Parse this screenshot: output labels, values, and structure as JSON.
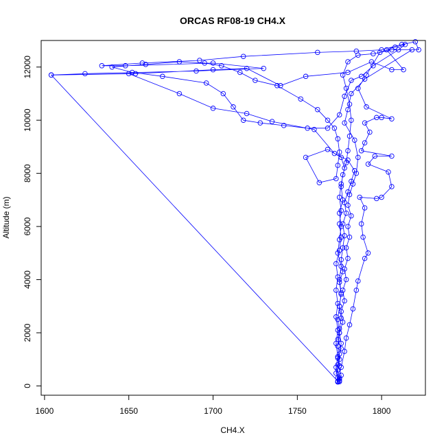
{
  "chart_data": {
    "type": "line",
    "title": "ORCAS RF08-19 CH4.X",
    "xlabel": "CH4.X",
    "ylabel": "Altitude (m)",
    "xlim": [
      1598,
      1826
    ],
    "ylim": [
      -350,
      13000
    ],
    "xticks": [
      1600,
      1650,
      1700,
      1750,
      1800
    ],
    "yticks": [
      0,
      2000,
      4000,
      6000,
      8000,
      10000,
      12000
    ],
    "grid": false,
    "legend": "none",
    "line_color": "#0000ff",
    "marker": "open-circle",
    "series": [
      {
        "values": [
          [
            1774,
            150
          ],
          [
            1775,
            260
          ],
          [
            1773,
            480
          ],
          [
            1775,
            760
          ],
          [
            1774,
            1050
          ],
          [
            1776,
            1400
          ],
          [
            1774,
            1750
          ],
          [
            1775,
            2150
          ],
          [
            1776,
            2550
          ],
          [
            1775,
            3000
          ],
          [
            1776,
            3450
          ],
          [
            1775,
            3900
          ],
          [
            1777,
            4300
          ],
          [
            1776,
            4750
          ],
          [
            1777,
            5200
          ],
          [
            1778,
            5650
          ],
          [
            1777,
            6100
          ],
          [
            1779,
            6500
          ],
          [
            1778,
            6900
          ],
          [
            1780,
            7300
          ],
          [
            1782,
            7700
          ],
          [
            1784,
            8100
          ],
          [
            1780,
            8500
          ],
          [
            1772,
            8750
          ],
          [
            1760,
            9650
          ],
          [
            1735,
            9950
          ],
          [
            1720,
            10250
          ],
          [
            1700,
            10450
          ],
          [
            1680,
            11000
          ],
          [
            1650,
            11750
          ],
          [
            1604,
            11700
          ],
          [
            1624,
            11750
          ],
          [
            1690,
            11850
          ],
          [
            1730,
            11950
          ],
          [
            1700,
            12150
          ],
          [
            1648,
            12050
          ],
          [
            1634,
            12050
          ],
          [
            1658,
            12150
          ],
          [
            1692,
            12250
          ],
          [
            1718,
            12400
          ],
          [
            1762,
            12550
          ],
          [
            1785,
            12600
          ],
          [
            1800,
            12650
          ],
          [
            1812,
            12850
          ],
          [
            1820,
            12950
          ],
          [
            1822,
            12650
          ],
          [
            1806,
            12650
          ],
          [
            1795,
            12500
          ],
          [
            1786,
            12450
          ],
          [
            1780,
            12200
          ],
          [
            1777,
            11700
          ],
          [
            1779,
            11200
          ],
          [
            1781,
            10600
          ],
          [
            1782,
            10000
          ],
          [
            1781,
            9400
          ],
          [
            1780,
            8850
          ],
          [
            1779,
            8400
          ],
          [
            1777,
            7950
          ],
          [
            1776,
            7500
          ],
          [
            1777,
            7000
          ],
          [
            1775,
            6500
          ],
          [
            1776,
            6000
          ],
          [
            1775,
            5500
          ],
          [
            1774,
            5000
          ],
          [
            1776,
            4500
          ],
          [
            1775,
            4000
          ],
          [
            1776,
            3500
          ],
          [
            1775,
            3000
          ],
          [
            1774,
            2500
          ],
          [
            1775,
            2000
          ],
          [
            1774,
            1500
          ],
          [
            1775,
            1000
          ],
          [
            1774,
            600
          ],
          [
            1775,
            300
          ],
          [
            1774,
            180
          ],
          [
            1604,
            11700
          ],
          [
            1654,
            11750
          ],
          [
            1700,
            11900
          ],
          [
            1720,
            11950
          ],
          [
            1740,
            11300
          ],
          [
            1755,
            11650
          ],
          [
            1780,
            11800
          ],
          [
            1794,
            12200
          ],
          [
            1806,
            11900
          ],
          [
            1813,
            11900
          ],
          [
            1803,
            12650
          ],
          [
            1818,
            12650
          ],
          [
            1790,
            11550
          ],
          [
            1782,
            11000
          ],
          [
            1780,
            10400
          ],
          [
            1778,
            9900
          ],
          [
            1784,
            9250
          ],
          [
            1786,
            8600
          ],
          [
            1785,
            8000
          ],
          [
            1783,
            7600
          ],
          [
            1781,
            7200
          ],
          [
            1780,
            6800
          ],
          [
            1782,
            6400
          ],
          [
            1780,
            6000
          ],
          [
            1781,
            5600
          ],
          [
            1779,
            5200
          ],
          [
            1780,
            4800
          ],
          [
            1778,
            4400
          ],
          [
            1779,
            4000
          ],
          [
            1777,
            3600
          ],
          [
            1778,
            3200
          ],
          [
            1776,
            2800
          ],
          [
            1777,
            2400
          ],
          [
            1775,
            2000
          ],
          [
            1776,
            1600
          ],
          [
            1775,
            1200
          ],
          [
            1774,
            800
          ],
          [
            1776,
            400
          ],
          [
            1775,
            160
          ],
          [
            1774,
            150
          ],
          [
            1776,
            700
          ],
          [
            1778,
            1300
          ],
          [
            1779,
            1800
          ],
          [
            1781,
            2300
          ],
          [
            1783,
            2900
          ],
          [
            1785,
            3600
          ],
          [
            1786,
            3950
          ],
          [
            1790,
            4800
          ],
          [
            1792,
            5000
          ],
          [
            1789,
            5600
          ],
          [
            1788,
            6100
          ],
          [
            1790,
            6700
          ],
          [
            1787,
            7100
          ],
          [
            1797,
            7050
          ],
          [
            1800,
            7100
          ],
          [
            1806,
            7500
          ],
          [
            1804,
            8050
          ],
          [
            1792,
            8350
          ],
          [
            1796,
            8650
          ],
          [
            1806,
            8650
          ],
          [
            1788,
            8850
          ],
          [
            1790,
            9150
          ],
          [
            1793,
            9550
          ],
          [
            1790,
            9900
          ],
          [
            1797,
            10100
          ],
          [
            1800,
            10100
          ],
          [
            1806,
            10050
          ],
          [
            1791,
            10500
          ],
          [
            1786,
            11200
          ],
          [
            1791,
            11700
          ],
          [
            1799,
            12550
          ],
          [
            1808,
            12750
          ],
          [
            1814,
            12850
          ],
          [
            1810,
            12650
          ],
          [
            1795,
            12050
          ],
          [
            1788,
            11650
          ],
          [
            1782,
            11500
          ],
          [
            1778,
            10900
          ],
          [
            1775,
            10200
          ],
          [
            1768,
            9700
          ],
          [
            1756,
            9700
          ],
          [
            1742,
            9800
          ],
          [
            1728,
            9900
          ],
          [
            1718,
            10000
          ],
          [
            1712,
            10500
          ],
          [
            1706,
            11000
          ],
          [
            1696,
            11400
          ],
          [
            1670,
            11650
          ],
          [
            1652,
            11800
          ],
          [
            1640,
            12000
          ],
          [
            1660,
            12100
          ],
          [
            1680,
            12200
          ],
          [
            1695,
            12150
          ],
          [
            1705,
            12050
          ],
          [
            1716,
            11800
          ],
          [
            1725,
            11500
          ],
          [
            1738,
            11300
          ],
          [
            1752,
            10800
          ],
          [
            1762,
            10400
          ],
          [
            1768,
            10000
          ],
          [
            1772,
            9700
          ],
          [
            1774,
            9300
          ],
          [
            1775,
            8800
          ],
          [
            1774,
            8300
          ],
          [
            1773,
            7800
          ],
          [
            1763,
            7650
          ],
          [
            1755,
            8600
          ],
          [
            1768,
            8900
          ],
          [
            1776,
            8600
          ],
          [
            1778,
            8200
          ],
          [
            1776,
            7600
          ],
          [
            1775,
            7100
          ],
          [
            1776,
            6600
          ],
          [
            1775,
            6100
          ],
          [
            1776,
            5600
          ],
          [
            1775,
            5100
          ],
          [
            1773,
            4600
          ],
          [
            1774,
            4100
          ],
          [
            1773,
            3600
          ],
          [
            1774,
            3100
          ],
          [
            1773,
            2600
          ],
          [
            1774,
            2100
          ],
          [
            1773,
            1600
          ],
          [
            1774,
            1100
          ],
          [
            1773,
            700
          ],
          [
            1774,
            300
          ],
          [
            1775,
            200
          ]
        ]
      }
    ]
  }
}
